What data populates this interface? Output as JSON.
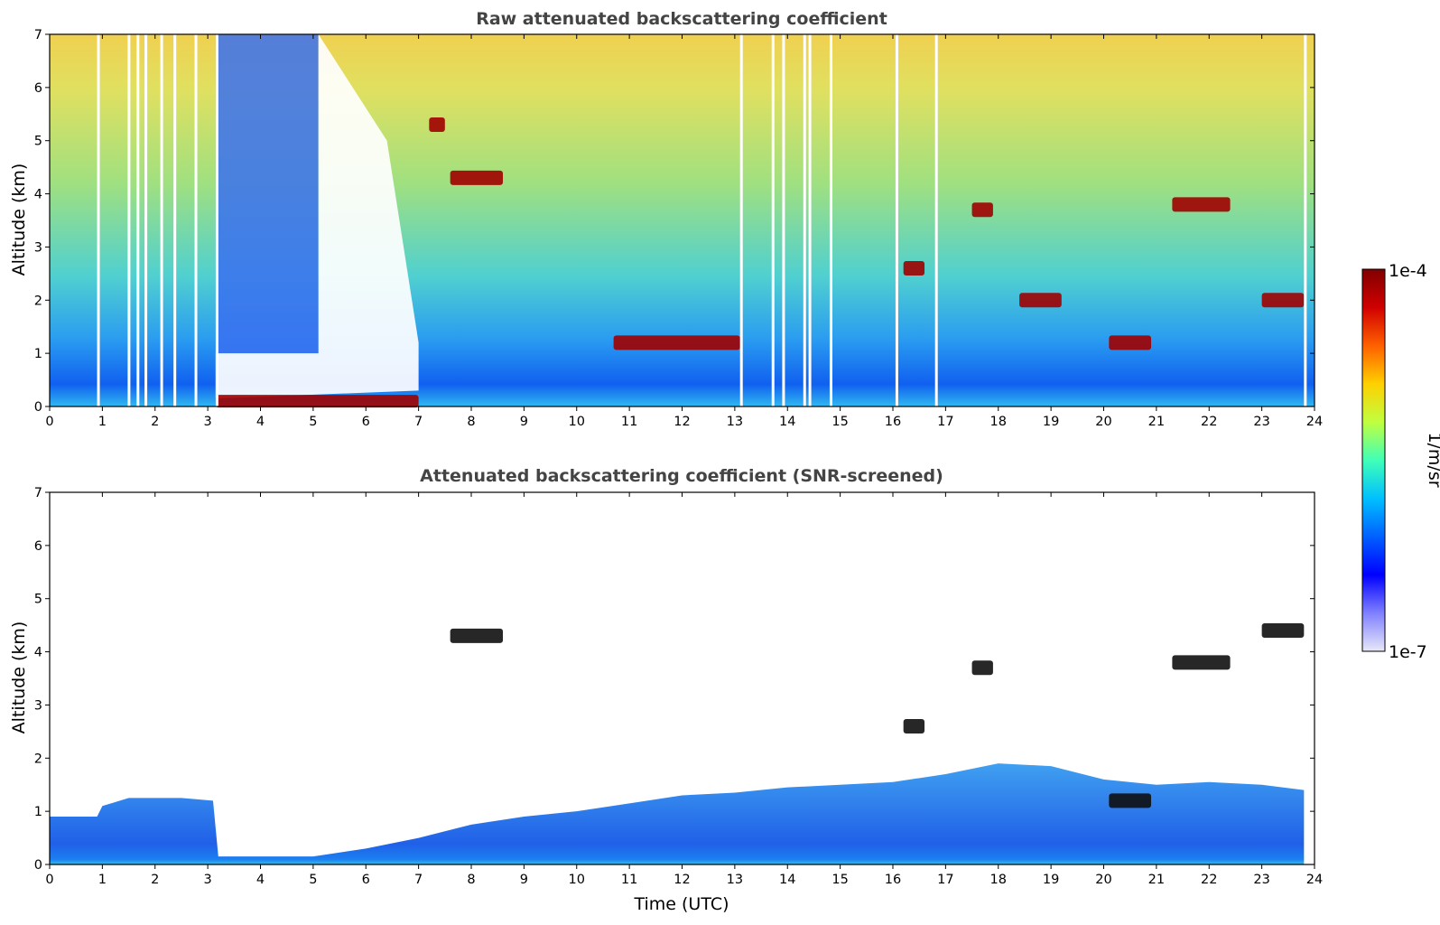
{
  "chart_data": [
    {
      "type": "heatmap",
      "title": "Raw attenuated backscattering coefficient",
      "xlabel": "",
      "ylabel": "Altitude (km)",
      "xlim": [
        0,
        24
      ],
      "ylim": [
        0,
        7
      ],
      "x_ticks": [
        0,
        1,
        2,
        3,
        4,
        5,
        6,
        7,
        8,
        9,
        10,
        11,
        12,
        13,
        14,
        15,
        16,
        17,
        18,
        19,
        20,
        21,
        22,
        23,
        24
      ],
      "y_ticks": [
        0,
        1,
        2,
        3,
        4,
        5,
        6,
        7
      ],
      "color_scale": "log",
      "zlim": [
        1e-07,
        0.0001
      ],
      "data_gaps_utc": [
        0.9,
        1.48,
        1.65,
        1.8,
        2.1,
        2.35,
        2.75,
        3.15,
        13.1,
        13.7,
        13.9,
        14.3,
        14.4,
        14.8,
        16.05,
        16.8,
        23.8
      ],
      "features": [
        {
          "label": "fog / low cloud layer",
          "t_start": 3.15,
          "t_end": 7.0,
          "alt_km": 0.1,
          "level": "high"
        },
        {
          "label": "cloud",
          "t_start": 7.6,
          "t_end": 8.6,
          "alt_km": 4.3,
          "level": "high"
        },
        {
          "label": "cloud",
          "t_start": 7.2,
          "t_end": 7.5,
          "alt_km": 5.3,
          "level": "high"
        },
        {
          "label": "cloud",
          "t_start": 10.7,
          "t_end": 13.1,
          "alt_km": 1.2,
          "level": "high"
        },
        {
          "label": "cloud",
          "t_start": 16.2,
          "t_end": 16.6,
          "alt_km": 2.6,
          "level": "high"
        },
        {
          "label": "cloud",
          "t_start": 17.5,
          "t_end": 17.9,
          "alt_km": 3.7,
          "level": "high"
        },
        {
          "label": "cloud",
          "t_start": 18.4,
          "t_end": 19.2,
          "alt_km": 2.0,
          "level": "high"
        },
        {
          "label": "cloud",
          "t_start": 20.1,
          "t_end": 20.9,
          "alt_km": 1.2,
          "level": "high"
        },
        {
          "label": "cloud",
          "t_start": 21.3,
          "t_end": 22.4,
          "alt_km": 3.8,
          "level": "high"
        },
        {
          "label": "cloud",
          "t_start": 23.0,
          "t_end": 23.8,
          "alt_km": 2.0,
          "level": "high"
        }
      ]
    },
    {
      "type": "heatmap",
      "title": "Attenuated backscattering coefficient (SNR-screened)",
      "xlabel": "Time (UTC)",
      "ylabel": "Altitude (km)",
      "xlim": [
        0,
        24
      ],
      "ylim": [
        0,
        7
      ],
      "x_ticks": [
        0,
        1,
        2,
        3,
        4,
        5,
        6,
        7,
        8,
        9,
        10,
        11,
        12,
        13,
        14,
        15,
        16,
        17,
        18,
        19,
        20,
        21,
        22,
        23,
        24
      ],
      "y_ticks": [
        0,
        1,
        2,
        3,
        4,
        5,
        6,
        7
      ],
      "color_scale": "log",
      "zlim": [
        1e-07,
        0.0001
      ],
      "boundary_layer_top_km": [
        [
          0,
          0.9
        ],
        [
          0.9,
          0.9
        ],
        [
          1.0,
          1.1
        ],
        [
          1.5,
          1.25
        ],
        [
          2.5,
          1.25
        ],
        [
          3.1,
          1.2
        ],
        [
          3.2,
          0.15
        ],
        [
          5.0,
          0.15
        ],
        [
          6.0,
          0.3
        ],
        [
          7.0,
          0.5
        ],
        [
          8.0,
          0.75
        ],
        [
          9.0,
          0.9
        ],
        [
          10.0,
          1.0
        ],
        [
          11.0,
          1.15
        ],
        [
          12.0,
          1.3
        ],
        [
          13.0,
          1.35
        ],
        [
          14.0,
          1.45
        ],
        [
          15.0,
          1.5
        ],
        [
          16.0,
          1.55
        ],
        [
          17.0,
          1.7
        ],
        [
          18.0,
          1.9
        ],
        [
          19.0,
          1.85
        ],
        [
          20.0,
          1.6
        ],
        [
          21.0,
          1.5
        ],
        [
          22.0,
          1.55
        ],
        [
          23.0,
          1.5
        ],
        [
          23.8,
          1.4
        ]
      ],
      "features": [
        {
          "label": "cloud",
          "t_start": 7.6,
          "t_end": 8.6,
          "alt_km": 4.3,
          "level": "high"
        },
        {
          "label": "cloud",
          "t_start": 16.2,
          "t_end": 16.6,
          "alt_km": 2.6,
          "level": "high"
        },
        {
          "label": "cloud",
          "t_start": 17.5,
          "t_end": 17.9,
          "alt_km": 3.7,
          "level": "high"
        },
        {
          "label": "cloud",
          "t_start": 20.1,
          "t_end": 20.9,
          "alt_km": 1.2,
          "level": "high"
        },
        {
          "label": "cloud",
          "t_start": 21.3,
          "t_end": 22.4,
          "alt_km": 3.8,
          "level": "high"
        },
        {
          "label": "cloud",
          "t_start": 23.0,
          "t_end": 23.8,
          "alt_km": 4.4,
          "level": "high"
        }
      ]
    }
  ],
  "colorbar": {
    "label": "1/m/sr",
    "max_label": "1e-4",
    "min_label": "1e-7",
    "colormap": "jet",
    "colors": [
      "#e8e8f8",
      "#8080ff",
      "#0000ff",
      "#0060ff",
      "#00c0ff",
      "#40ffb8",
      "#c0ff40",
      "#ffd000",
      "#ff6000",
      "#d00000",
      "#800000"
    ]
  }
}
